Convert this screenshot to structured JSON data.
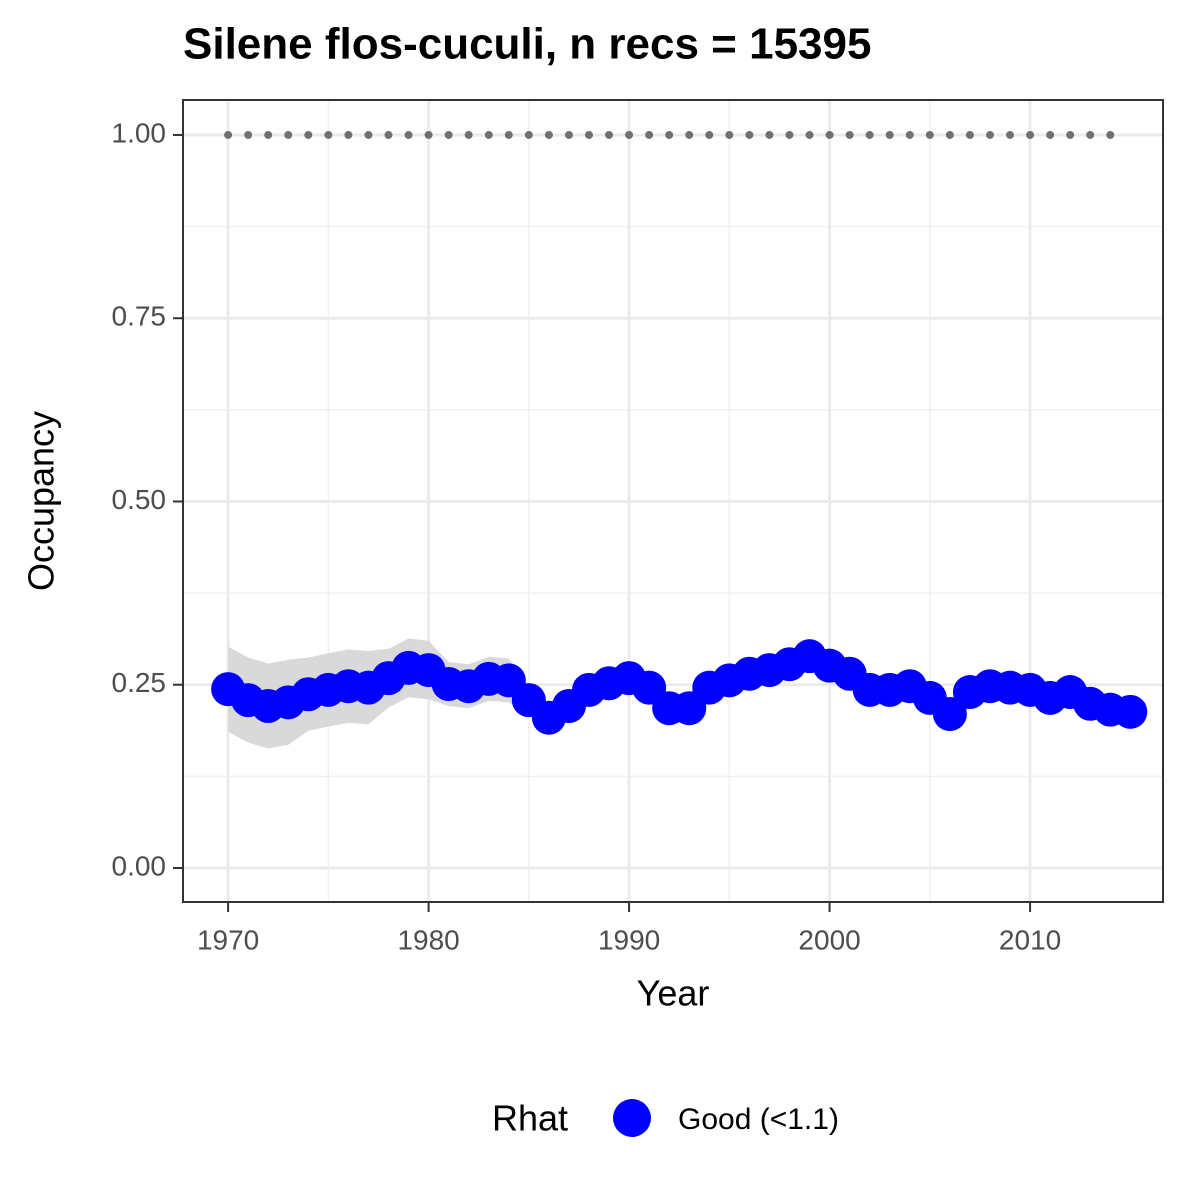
{
  "chart_data": {
    "type": "line",
    "title": "Silene flos-cuculi, n recs = 15395",
    "x_label": "Year",
    "y_label": "Occupancy",
    "legend_title": "Rhat",
    "legend_position": "bottom",
    "grid": true,
    "x": [
      1970,
      1971,
      1972,
      1973,
      1974,
      1975,
      1976,
      1977,
      1978,
      1979,
      1980,
      1981,
      1982,
      1983,
      1984,
      1985,
      1986,
      1987,
      1988,
      1989,
      1990,
      1991,
      1992,
      1993,
      1994,
      1995,
      1996,
      1997,
      1998,
      1999,
      2000,
      2001,
      2002,
      2003,
      2004,
      2005,
      2006,
      2007,
      2008,
      2009,
      2010,
      2011,
      2012,
      2013,
      2014,
      2015
    ],
    "series": [
      {
        "name": "Good (<1.1)",
        "color": "#0000ff",
        "band_color": "#d9d9d9",
        "values": [
          0.244,
          0.229,
          0.221,
          0.226,
          0.237,
          0.243,
          0.248,
          0.246,
          0.259,
          0.273,
          0.27,
          0.251,
          0.248,
          0.258,
          0.256,
          0.229,
          0.205,
          0.221,
          0.243,
          0.252,
          0.259,
          0.246,
          0.218,
          0.218,
          0.246,
          0.256,
          0.265,
          0.27,
          0.278,
          0.289,
          0.276,
          0.265,
          0.243,
          0.243,
          0.248,
          0.232,
          0.21,
          0.24,
          0.248,
          0.246,
          0.243,
          0.232,
          0.24,
          0.224,
          0.216,
          0.213
        ],
        "lower": [
          0.186,
          0.171,
          0.163,
          0.168,
          0.187,
          0.193,
          0.198,
          0.196,
          0.219,
          0.233,
          0.23,
          0.221,
          0.218,
          0.228,
          0.226,
          0.209,
          0.185,
          0.201,
          0.223,
          0.232,
          0.239,
          0.226,
          0.198,
          0.198,
          0.226,
          0.236,
          0.245,
          0.25,
          0.258,
          0.269,
          0.256,
          0.245,
          0.223,
          0.223,
          0.228,
          0.212,
          0.19,
          0.22,
          0.228,
          0.226,
          0.223,
          0.212,
          0.22,
          0.204,
          0.196,
          0.193
        ],
        "upper": [
          0.302,
          0.287,
          0.279,
          0.284,
          0.287,
          0.293,
          0.298,
          0.296,
          0.299,
          0.313,
          0.31,
          0.281,
          0.278,
          0.288,
          0.286,
          0.249,
          0.225,
          0.241,
          0.263,
          0.272,
          0.279,
          0.266,
          0.238,
          0.238,
          0.266,
          0.276,
          0.285,
          0.29,
          0.298,
          0.309,
          0.296,
          0.285,
          0.263,
          0.263,
          0.268,
          0.252,
          0.23,
          0.26,
          0.268,
          0.266,
          0.263,
          0.252,
          0.26,
          0.244,
          0.236,
          0.233
        ]
      }
    ],
    "hline": 1,
    "hline_color": "#707070",
    "xlim": [
      1967.75,
      2016.63
    ],
    "ylim": [
      -0.0464,
      1.0477
    ],
    "xticks": [
      1970,
      1980,
      1990,
      2000,
      2010
    ],
    "yticks": [
      {
        "value": 0,
        "label": "0.00"
      },
      {
        "value": 0.25,
        "label": "0.25"
      },
      {
        "value": 0.5,
        "label": "0.50"
      },
      {
        "value": 0.75,
        "label": "0.75"
      },
      {
        "value": 1,
        "label": "1.00"
      }
    ]
  }
}
